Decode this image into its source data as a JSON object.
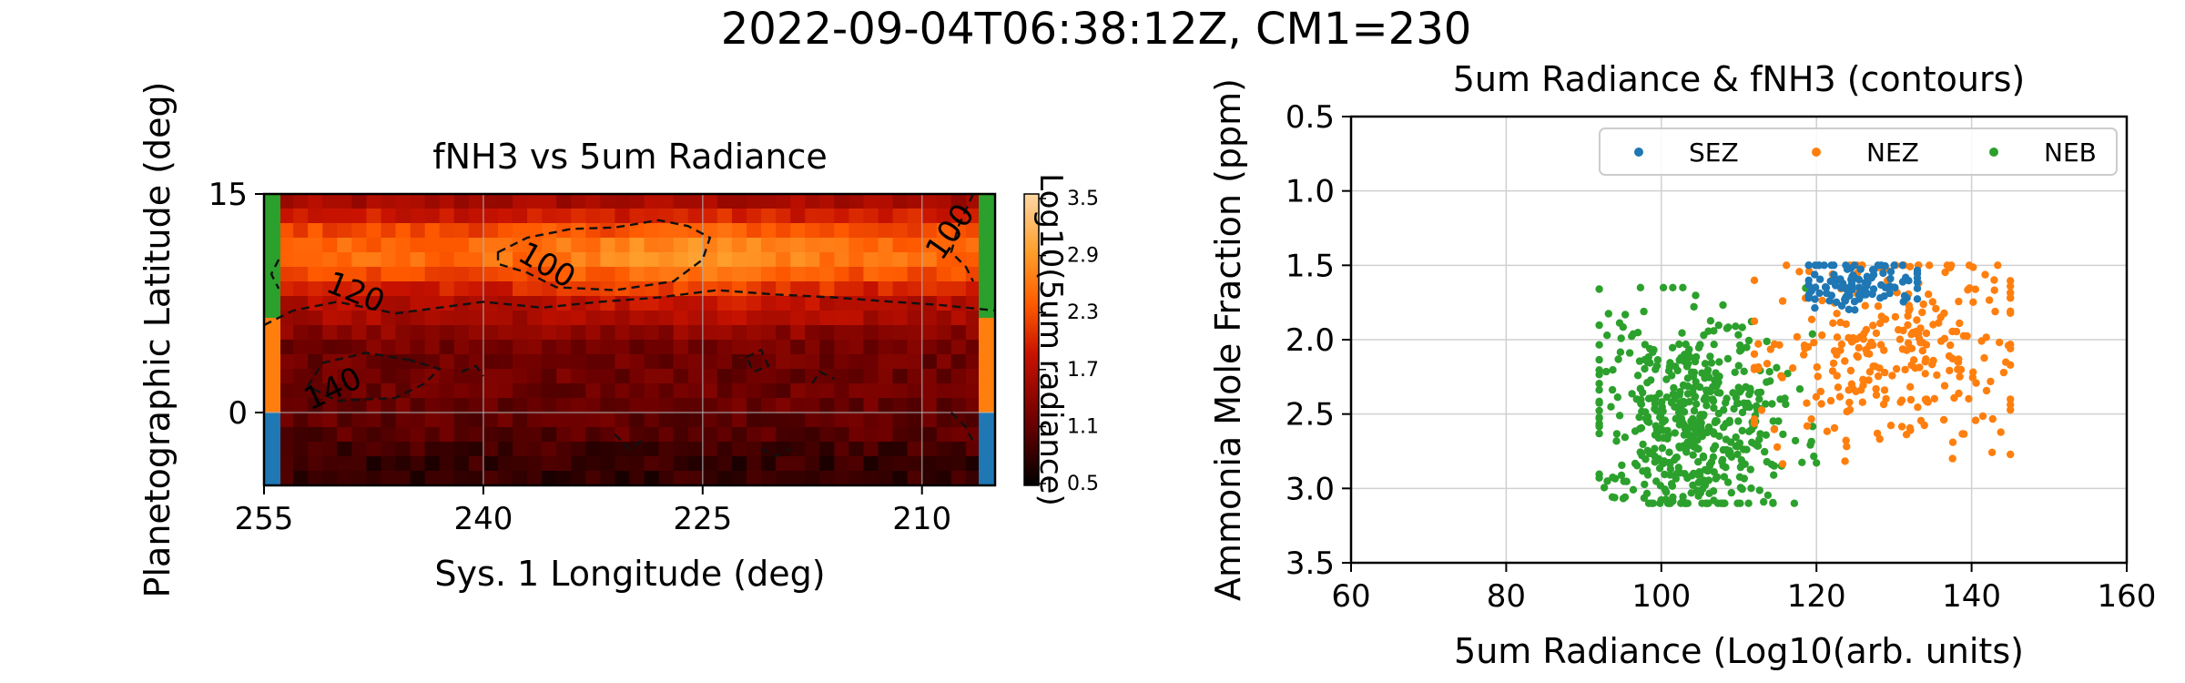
{
  "figure": {
    "suptitle": "2022-09-04T06:38:12Z, CM1=230"
  },
  "chart_data": [
    {
      "type": "heatmap",
      "title": "fNH3 vs 5um Radiance",
      "xlabel": "Sys. 1 Longitude (deg)",
      "ylabel": "Planetographic Latitude (deg)",
      "xlim": [
        255,
        205
      ],
      "ylim": [
        -5,
        15
      ],
      "xticks": [
        255,
        240,
        225,
        210
      ],
      "yticks": [
        15,
        0
      ],
      "grid": true,
      "x_reversed": true,
      "colorbar": {
        "label": "Log10(5um radiance)",
        "ticks": [
          "3.5",
          "2.9",
          "2.3",
          "1.7",
          "1.1",
          "0.5"
        ],
        "range": [
          0.5,
          3.5
        ],
        "colormap": "gist_heat"
      },
      "zone_strips": [
        {
          "zone": "NEB",
          "lat_range": [
            6.5,
            15
          ],
          "color": "#2ca02c"
        },
        {
          "zone": "NEZ",
          "lat_range": [
            0,
            6.5
          ],
          "color": "#ff7f0e"
        },
        {
          "zone": "SEZ",
          "lat_range": [
            -5,
            0
          ],
          "color": "#1f77b4"
        }
      ],
      "contour_labels": [
        {
          "text": "100",
          "lon": 236,
          "lat": 9.5,
          "angle": 30
        },
        {
          "text": "100",
          "lon": 207.5,
          "lat": 12,
          "angle": -55
        },
        {
          "text": "120",
          "lon": 249,
          "lat": 7.6,
          "angle": 22
        },
        {
          "text": "140",
          "lon": 250,
          "lat": 1,
          "angle": -25
        }
      ],
      "contour_levels": [
        100,
        120,
        140
      ]
    },
    {
      "type": "scatter",
      "title": "5um Radiance & fNH3 (contours)",
      "xlabel": "5um Radiance (Log10(arb. units)",
      "ylabel": "Ammonia Mole Fraction (ppm)",
      "xlim": [
        60,
        160
      ],
      "ylim": [
        3.5,
        0.5
      ],
      "y_inverted": true,
      "xticks": [
        "60",
        "80",
        "100",
        "120",
        "140",
        "160"
      ],
      "yticks": [
        "0.5",
        "1.0",
        "1.5",
        "2.0",
        "2.5",
        "3.0",
        "3.5"
      ],
      "grid": true,
      "legend_position": "top-right",
      "series": [
        {
          "name": "SEZ",
          "color": "#1f77b4",
          "x_center": 126,
          "x_spread": 4.5,
          "y_center": 1.62,
          "y_spread": 0.08,
          "count": 110
        },
        {
          "name": "NEZ",
          "color": "#ff7f0e",
          "x_center": 130,
          "x_spread": 9,
          "y_center": 2.05,
          "y_spread": 0.35,
          "count": 280
        },
        {
          "name": "NEB",
          "color": "#2ca02c",
          "x_center": 104,
          "x_spread": 6.5,
          "y_center": 2.55,
          "y_spread": 0.35,
          "count": 520
        }
      ]
    }
  ]
}
